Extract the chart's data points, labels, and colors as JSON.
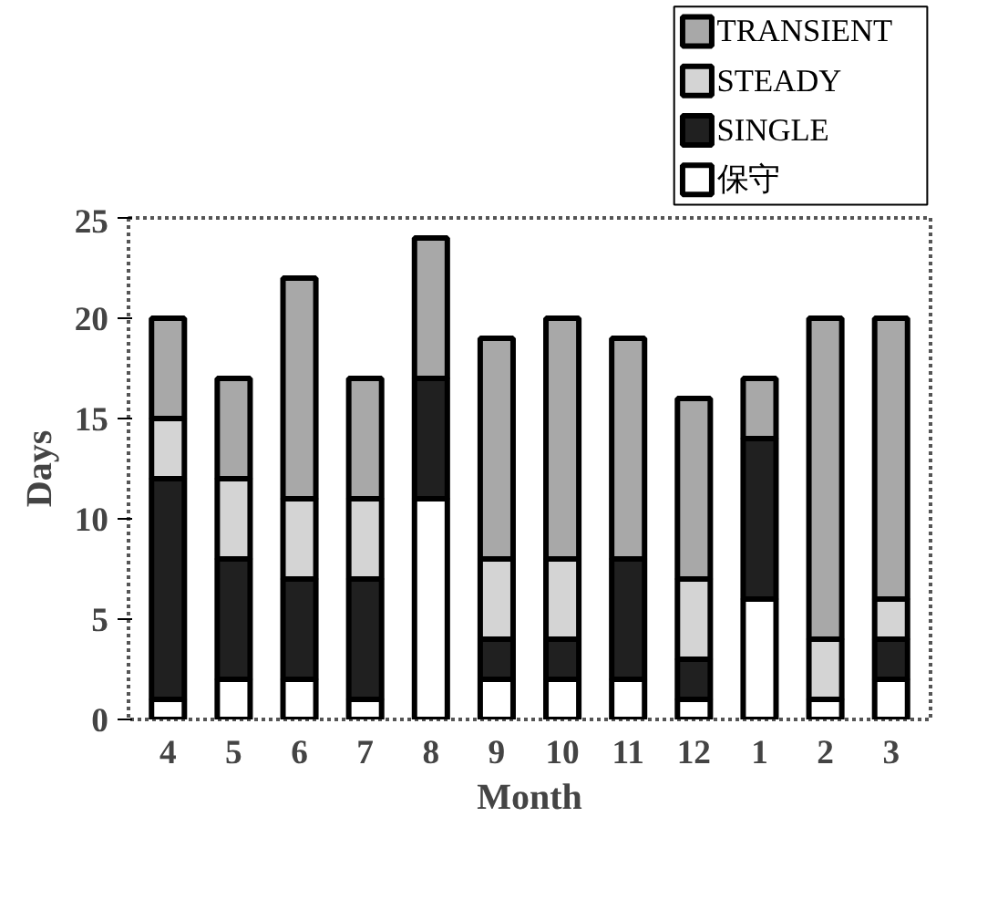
{
  "chart_data": {
    "type": "bar",
    "stacked": true,
    "xlabel": "Month",
    "ylabel": "Days",
    "categories": [
      "4",
      "5",
      "6",
      "7",
      "8",
      "9",
      "10",
      "11",
      "12",
      "1",
      "2",
      "3"
    ],
    "ylim": [
      0,
      25
    ],
    "yticks": [
      0,
      5,
      10,
      15,
      20,
      25
    ],
    "grid": false,
    "legend": "top right",
    "series": [
      {
        "name": "保守",
        "color": "#ffffff",
        "values": [
          1,
          2,
          2,
          1,
          11,
          2,
          2,
          2,
          1,
          6,
          1,
          2
        ]
      },
      {
        "name": "SINGLE",
        "color": "#202020",
        "values": [
          11,
          6,
          5,
          6,
          6,
          2,
          2,
          6,
          2,
          8,
          0,
          2
        ]
      },
      {
        "name": "STEADY",
        "color": "#d4d4d4",
        "values": [
          3,
          4,
          4,
          4,
          0,
          4,
          4,
          0,
          4,
          0,
          3,
          2
        ]
      },
      {
        "name": "TRANSIENT",
        "color": "#a8a8a8",
        "values": [
          5,
          5,
          11,
          6,
          7,
          11,
          12,
          11,
          9,
          3,
          16,
          14
        ]
      }
    ]
  }
}
